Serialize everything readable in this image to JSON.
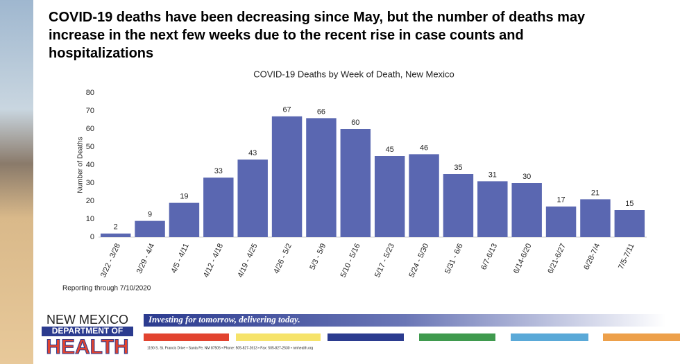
{
  "slide": {
    "headline": "COVID-19 deaths have been decreasing since May, but the number of deaths may increase in the next few weeks due to the recent rise in case counts and hospitalizations",
    "note": "Reporting through 7/10/2020",
    "footer": {
      "logo_line1": "NEW MEXICO",
      "logo_line2": "DEPARTMENT OF",
      "logo_line3": "HEALTH",
      "tagline": "Investing for tomorrow, delivering today.",
      "address": "1190 S. St. Francis Drive • Santa Fe, NM 87505 • Phone: 505-827-2613 • Fax: 505-827-2530 • nmhealth.org"
    }
  },
  "chart_data": {
    "type": "bar",
    "title": "COVID-19 Deaths by Week of Death, New Mexico",
    "y_label": "Number of Deaths",
    "categories": [
      "3/22 - 3/28",
      "3/29 - 4/4",
      "4/5 - 4/11",
      "4/12 - 4/18",
      "4/19 - 4/25",
      "4/26 - 5/2",
      "5/3 - 5/9",
      "5/10 - 5/16",
      "5/17 - 5/23",
      "5/24 - 5/30",
      "5/31 - 6/6",
      "6/7-6/13",
      "6/14-6/20",
      "6/21-6/27",
      "6/28-7/4",
      "7/5-7/11"
    ],
    "values": [
      2,
      9,
      19,
      33,
      43,
      67,
      66,
      60,
      45,
      46,
      35,
      31,
      30,
      17,
      21,
      15
    ],
    "color": "#5a67b1",
    "ylim": [
      0,
      80
    ],
    "yticks": [
      0,
      10,
      20,
      30,
      40,
      50,
      60,
      70,
      80
    ],
    "grid": false
  }
}
